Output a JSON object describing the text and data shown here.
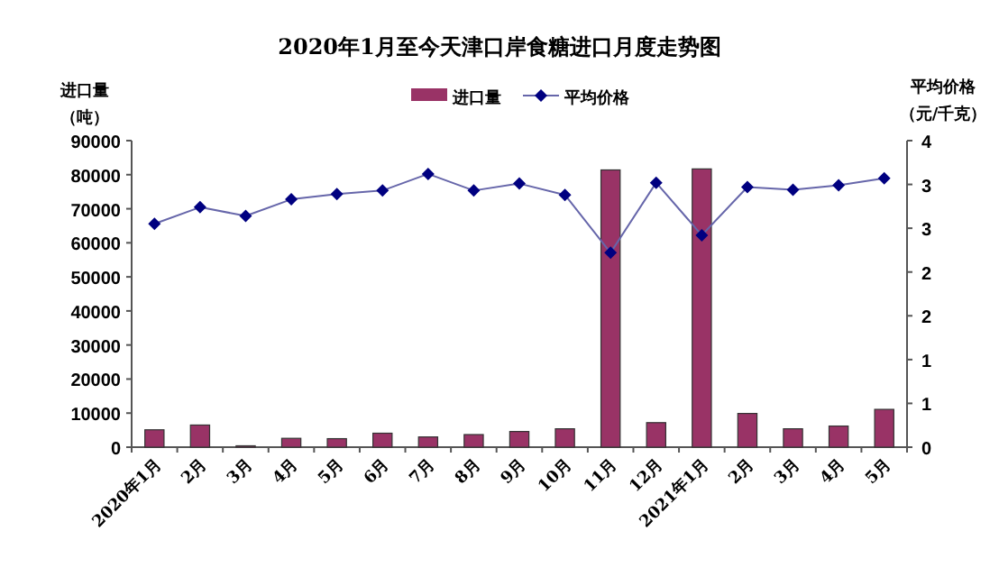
{
  "chart_data": {
    "type": "bar",
    "title": "2020年1月至今天津口岸食糖进口月度走势图",
    "ylabel": "进口量（吨）",
    "y2label": "平均价格（元/千克）",
    "categories": [
      "2020年1月",
      "2月",
      "3月",
      "4月",
      "5月",
      "6月",
      "7月",
      "8月",
      "9月",
      "10月",
      "11月",
      "12月",
      "2021年1月",
      "2月",
      "3月",
      "4月",
      "5月"
    ],
    "series": [
      {
        "name": "进口量",
        "color": "#993366",
        "values": [
          5100,
          6500,
          400,
          2600,
          2500,
          4100,
          3000,
          3700,
          4600,
          5400,
          81400,
          7200,
          81700,
          9900,
          5400,
          6200,
          11100
        ]
      },
      {
        "name": "平均价格",
        "type": "line",
        "axis": "y2",
        "color": "#000080",
        "marker": "diamond",
        "values": [
          2.55,
          2.74,
          2.64,
          2.83,
          2.89,
          2.93,
          3.12,
          2.93,
          3.01,
          2.88,
          2.22,
          3.02,
          2.42,
          2.97,
          2.94,
          2.99,
          3.07
        ]
      }
    ],
    "ylim": [
      0,
      90000
    ],
    "yticks": [
      0,
      10000,
      20000,
      30000,
      40000,
      50000,
      60000,
      70000,
      80000,
      90000
    ],
    "y2lim": [
      0,
      3.5
    ],
    "y2ticks": [
      0,
      {
        "value": 0.5,
        "label": "1"
      },
      {
        "value": 1,
        "label": "1"
      },
      {
        "value": 1.5,
        "label": "2"
      },
      {
        "value": 2,
        "label": "2"
      },
      {
        "value": 2.5,
        "label": "3"
      },
      {
        "value": 3,
        "label": "3"
      },
      {
        "value": 3.5,
        "label": "4"
      }
    ],
    "legend": "top",
    "grid": false
  }
}
